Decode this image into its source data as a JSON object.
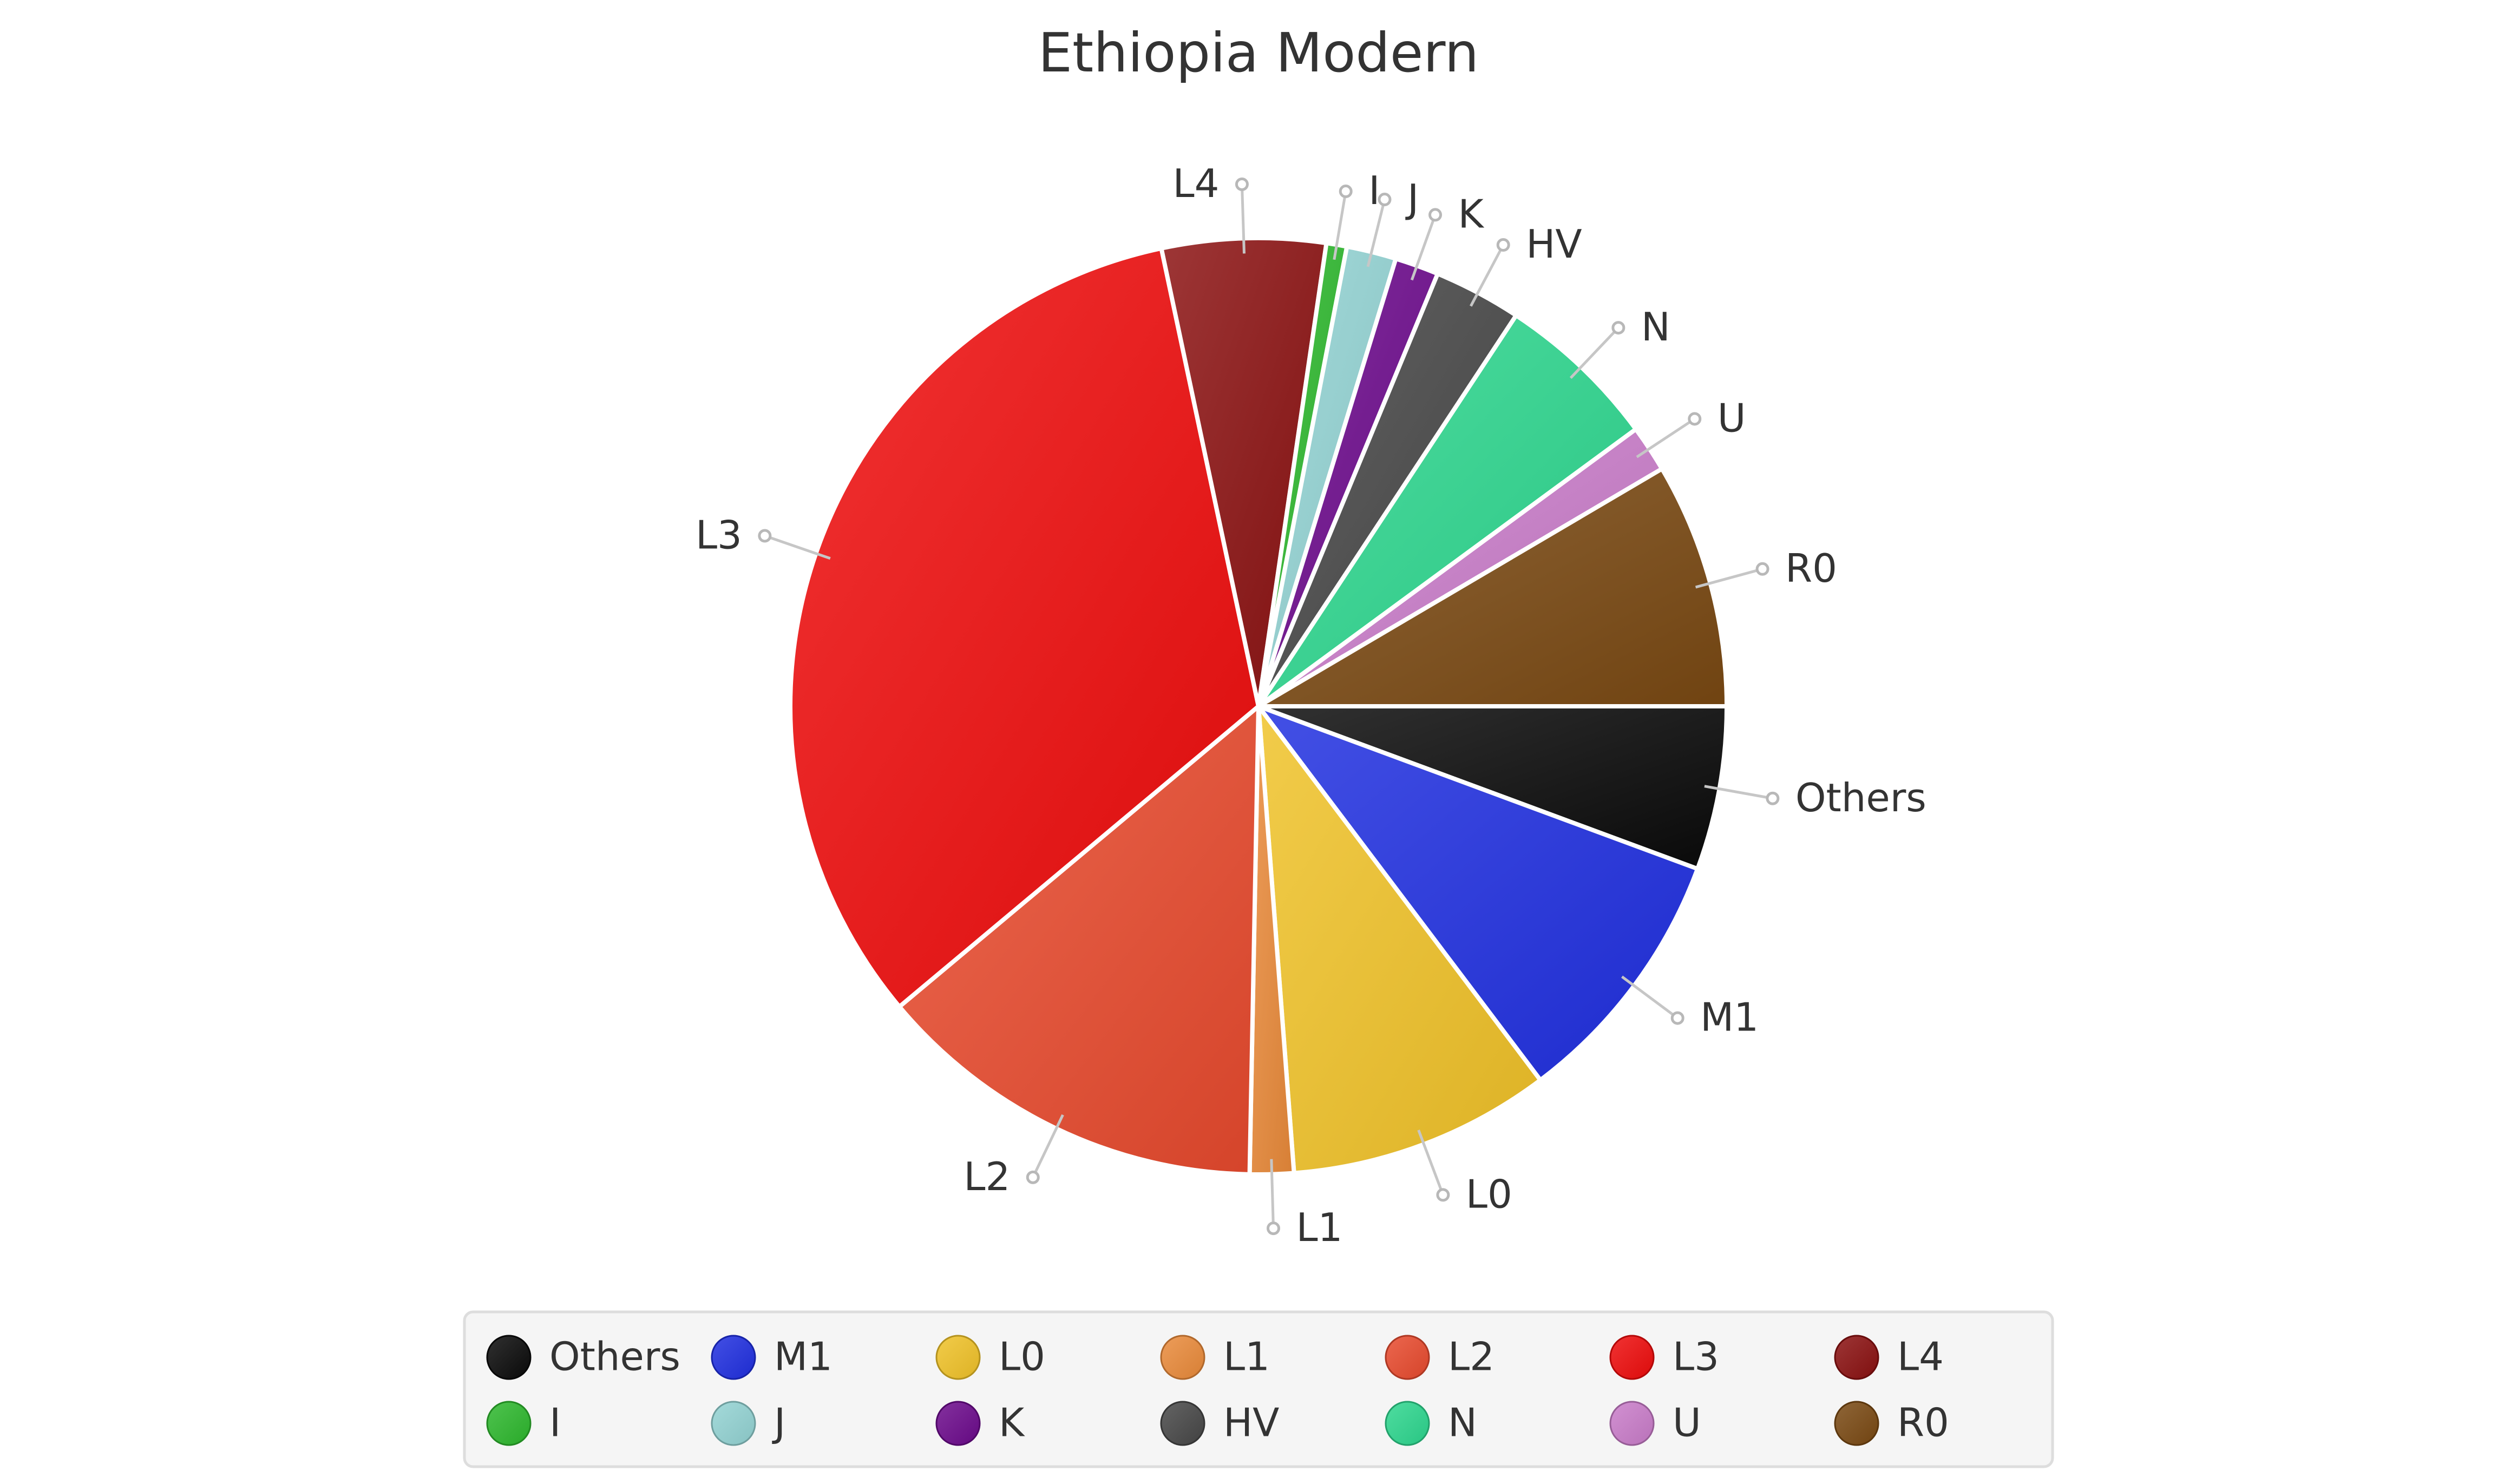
{
  "chart_data": {
    "type": "pie",
    "title": "Ethiopia Modern",
    "start": "three-o-clock",
    "direction": "clockwise",
    "legend_placement": "bottom",
    "slices": [
      {
        "label": "Others",
        "value": 5.6,
        "color": "#0a0a0a"
      },
      {
        "label": "M1",
        "value": 9.0,
        "color": "#1f2fe0"
      },
      {
        "label": "L0",
        "value": 9.0,
        "color": "#f0c228"
      },
      {
        "label": "L1",
        "value": 1.5,
        "color": "#ea8a3a"
      },
      {
        "label": "L2",
        "value": 13.5,
        "color": "#e84a2e"
      },
      {
        "label": "L3",
        "value": 32.5,
        "color": "#ee0c0c"
      },
      {
        "label": "L4",
        "value": 5.6,
        "color": "#8a1010"
      },
      {
        "label": "I",
        "value": 0.7,
        "color": "#2db82d"
      },
      {
        "label": "J",
        "value": 1.7,
        "color": "#93d3d3"
      },
      {
        "label": "K",
        "value": 1.5,
        "color": "#6c0a8c"
      },
      {
        "label": "HV",
        "value": 3.0,
        "color": "#474747"
      },
      {
        "label": "N",
        "value": 5.6,
        "color": "#2dd68e"
      },
      {
        "label": "U",
        "value": 1.6,
        "color": "#c97cc9"
      },
      {
        "label": "R0",
        "value": 8.4,
        "color": "#7a4912"
      }
    ]
  }
}
